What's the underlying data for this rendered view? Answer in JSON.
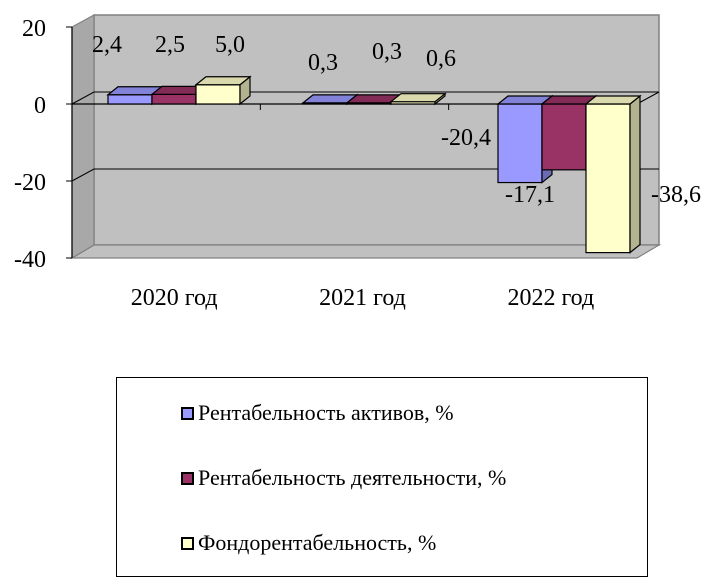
{
  "chart_data": {
    "type": "bar",
    "title": "",
    "xlabel": "",
    "ylabel": "",
    "categories": [
      "2020 год",
      "2021 год",
      "2022 год"
    ],
    "series": [
      {
        "name": "Рентабельность активов, %",
        "values": [
          2.4,
          0.3,
          -20.4
        ],
        "labels": [
          "2,4",
          "0,3",
          "-20,4"
        ],
        "color": "#9999ff"
      },
      {
        "name": "Рентабельность деятельности, %",
        "values": [
          2.5,
          0.3,
          -17.1
        ],
        "labels": [
          "2,5",
          "0,3",
          "-17,1"
        ],
        "color": "#993366"
      },
      {
        "name": "Фондорентабельность, %",
        "values": [
          5.0,
          0.6,
          -38.6
        ],
        "labels": [
          "5,0",
          "0,6",
          "-38,6"
        ],
        "color": "#ffffcc"
      }
    ],
    "ylim": [
      -40,
      20
    ],
    "yticks": [
      "20",
      "0",
      "-20",
      "-40"
    ],
    "ytick_values": [
      20,
      0,
      -20,
      -40
    ],
    "grid": true,
    "legend_position": "bottom"
  }
}
